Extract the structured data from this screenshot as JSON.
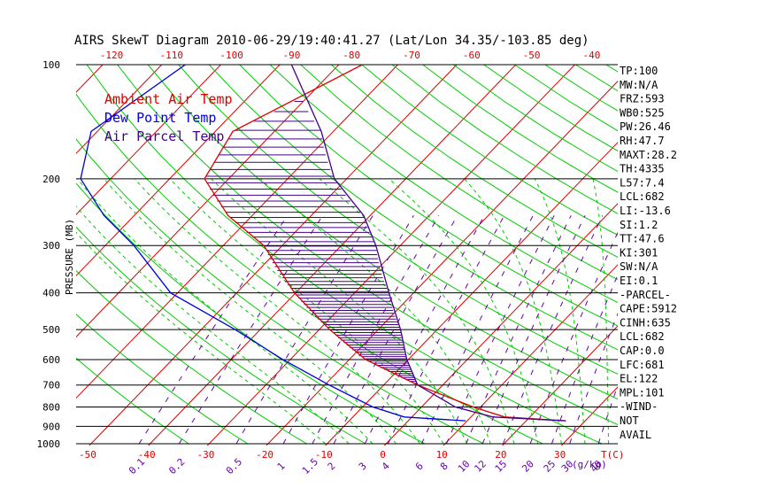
{
  "chart_data": {
    "type": "skewt",
    "title": "AIRS SkewT Diagram 2010-06-29/19:40:41.27 (Lat/Lon 34.35/-103.85 deg)",
    "ylabel": "PRESSURE (MB)",
    "xlabel_bottom_temp": "T(C)",
    "xlabel_bottom_mixing": "(g/kg)",
    "pressure_ticks": [
      "100",
      "200",
      "300",
      "400",
      "500",
      "600",
      "700",
      "800",
      "900",
      "1000"
    ],
    "pressure_levels": [
      100,
      200,
      300,
      400,
      500,
      600,
      700,
      800,
      900,
      1000
    ],
    "top_temp_ticks": [
      "-120",
      "-110",
      "-100",
      "-90",
      "-80",
      "-70",
      "-60",
      "-50",
      "-40"
    ],
    "bottom_temp_ticks": [
      "-50",
      "-40",
      "-30",
      "-20",
      "-10",
      "0",
      "10",
      "20",
      "30"
    ],
    "mixing_ratio_ticks": [
      "0.1",
      "0.2",
      "0.5",
      "1",
      "1.5",
      "2",
      "3",
      "4",
      "6",
      "8",
      "10",
      "12",
      "15",
      "20",
      "25",
      "30",
      "40"
    ],
    "legend": [
      {
        "label": "Ambient Air Temp",
        "color": "#dd0000"
      },
      {
        "label": "Dew Point Temp",
        "color": "#0000dd"
      },
      {
        "label": "Air Parcel Temp",
        "color": "#440088"
      }
    ],
    "series": [
      {
        "name": "Ambient Air Temp",
        "color": "#dd0000",
        "points": [
          [
            100,
            -66
          ],
          [
            150,
            -77
          ],
          [
            200,
            -74
          ],
          [
            250,
            -64
          ],
          [
            300,
            -53
          ],
          [
            400,
            -40
          ],
          [
            500,
            -28
          ],
          [
            600,
            -17
          ],
          [
            700,
            -4
          ],
          [
            800,
            9
          ],
          [
            850,
            16
          ],
          [
            870,
            27
          ]
        ]
      },
      {
        "name": "Dew Point Temp",
        "color": "#0000dd",
        "points": [
          [
            100,
            -96
          ],
          [
            150,
            -101
          ],
          [
            200,
            -95
          ],
          [
            250,
            -85
          ],
          [
            300,
            -75
          ],
          [
            400,
            -61
          ],
          [
            500,
            -44
          ],
          [
            600,
            -31
          ],
          [
            700,
            -19
          ],
          [
            800,
            -8
          ],
          [
            850,
            -1
          ],
          [
            870,
            10
          ]
        ]
      },
      {
        "name": "Air Parcel Temp",
        "color": "#440088",
        "points": [
          [
            100,
            -78
          ],
          [
            150,
            -62
          ],
          [
            200,
            -52
          ],
          [
            250,
            -41
          ],
          [
            300,
            -34
          ],
          [
            400,
            -24
          ],
          [
            500,
            -16
          ],
          [
            600,
            -10
          ],
          [
            700,
            -4
          ],
          [
            800,
            6
          ],
          [
            850,
            14
          ],
          [
            870,
            27
          ]
        ]
      }
    ],
    "indices": [
      "TP:100",
      "MW:N/A",
      "FRZ:593",
      "WB0:525",
      "PW:26.46",
      "RH:47.7",
      "MAXT:28.2",
      "TH:4335",
      "L57:7.4",
      "LCL:682",
      "LI:-13.6",
      "SI:1.2",
      "TT:47.6",
      "KI:301",
      "SW:N/A",
      "EI:0.1",
      "-PARCEL-",
      "CAPE:5912",
      "CINH:635",
      "LCL:682",
      "CAP:0.0",
      "LFC:681",
      "EL:122",
      "MPL:101",
      "-WIND-",
      "NOT",
      "AVAIL"
    ],
    "colors": {
      "isotherm": "#dd0000",
      "dry_adiabat": "#00cc00",
      "moist_adiabat": "#00cc00",
      "mixing_ratio": "#6600aa",
      "isobar": "#000000",
      "shading": "#440088"
    }
  }
}
